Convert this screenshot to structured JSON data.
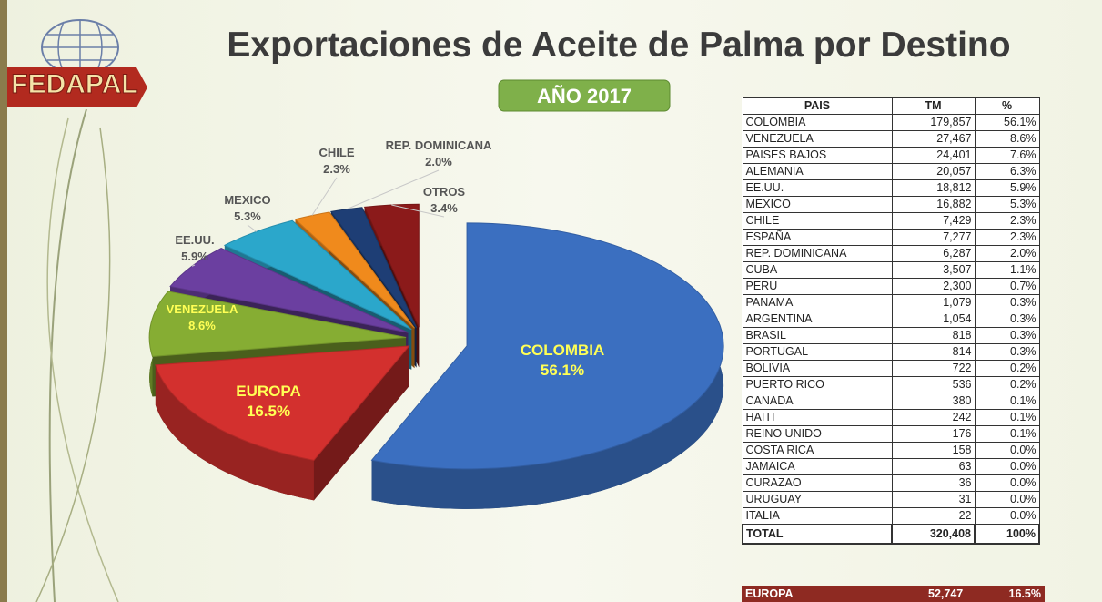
{
  "logo": "FEDAPAL",
  "title": "Exportaciones de Aceite de Palma por Destino",
  "subtitle": "AÑO 2017",
  "chart_data": {
    "type": "pie",
    "categories": [
      "COLOMBIA",
      "EUROPA",
      "VENEZUELA",
      "EE.UU.",
      "MEXICO",
      "CHILE",
      "REP. DOMINICANA",
      "OTROS"
    ],
    "values": [
      56.1,
      16.5,
      8.6,
      5.9,
      5.3,
      2.3,
      2.0,
      3.4
    ],
    "value_labels": [
      "56.1%",
      "16.5%",
      "8.6%",
      "5.9%",
      "5.3%",
      "2.3%",
      "2.0%",
      "3.4%"
    ],
    "colors": [
      "#3b6fc0",
      "#d3302e",
      "#86ad33",
      "#6b3fa0",
      "#2ba7cb",
      "#f08a1c",
      "#1e3e75",
      "#8b1a1a"
    ]
  },
  "table": {
    "header": [
      "PAIS",
      "TM",
      "%"
    ],
    "rows": [
      [
        "COLOMBIA",
        "179,857",
        "56.1%"
      ],
      [
        "VENEZUELA",
        "27,467",
        "8.6%"
      ],
      [
        "PAISES BAJOS",
        "24,401",
        "7.6%"
      ],
      [
        "ALEMANIA",
        "20,057",
        "6.3%"
      ],
      [
        "EE.UU.",
        "18,812",
        "5.9%"
      ],
      [
        "MEXICO",
        "16,882",
        "5.3%"
      ],
      [
        "CHILE",
        "7,429",
        "2.3%"
      ],
      [
        "ESPAÑA",
        "7,277",
        "2.3%"
      ],
      [
        "REP. DOMINICANA",
        "6,287",
        "2.0%"
      ],
      [
        "CUBA",
        "3,507",
        "1.1%"
      ],
      [
        "PERU",
        "2,300",
        "0.7%"
      ],
      [
        "PANAMA",
        "1,079",
        "0.3%"
      ],
      [
        "ARGENTINA",
        "1,054",
        "0.3%"
      ],
      [
        "BRASIL",
        "818",
        "0.3%"
      ],
      [
        "PORTUGAL",
        "814",
        "0.3%"
      ],
      [
        "BOLIVIA",
        "722",
        "0.2%"
      ],
      [
        "PUERTO RICO",
        "536",
        "0.2%"
      ],
      [
        "CANADA",
        "380",
        "0.1%"
      ],
      [
        "HAITI",
        "242",
        "0.1%"
      ],
      [
        "REINO UNIDO",
        "176",
        "0.1%"
      ],
      [
        "COSTA RICA",
        "158",
        "0.0%"
      ],
      [
        "JAMAICA",
        "63",
        "0.0%"
      ],
      [
        "CURAZAO",
        "36",
        "0.0%"
      ],
      [
        "URUGUAY",
        "31",
        "0.0%"
      ],
      [
        "ITALIA",
        "22",
        "0.0%"
      ]
    ],
    "total": [
      "TOTAL",
      "320,408",
      "100%"
    ],
    "extra": [
      "EUROPA",
      "52,747",
      "16.5%"
    ]
  }
}
